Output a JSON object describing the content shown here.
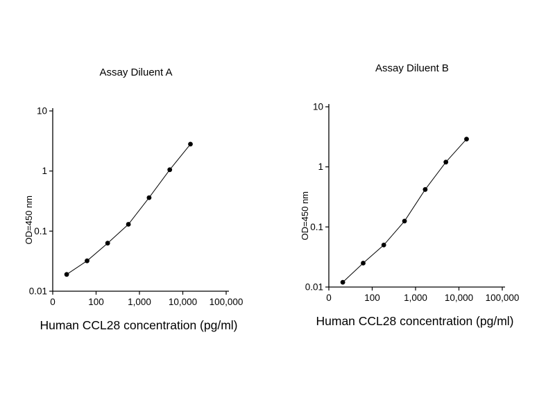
{
  "page": {
    "background": "#ffffff",
    "text_color": "#000000"
  },
  "chart_data": [
    {
      "type": "line",
      "title": "Assay Diluent A",
      "xlabel": "Human CCL28 concentration (pg/ml)",
      "ylabel": "OD=450 nm",
      "x_scale": "log",
      "y_scale": "log",
      "xlim": [
        10,
        100000
      ],
      "ylim": [
        0.01,
        10
      ],
      "grid": false,
      "legend": "none",
      "line_color": "#000000",
      "marker_color": "#000000",
      "x_ticks": [
        {
          "label": "0",
          "value": 10
        },
        {
          "label": "100",
          "value": 100
        },
        {
          "label": "1,000",
          "value": 1000
        },
        {
          "label": "10,000",
          "value": 10000
        },
        {
          "label": "100,000",
          "value": 100000
        }
      ],
      "y_ticks": [
        {
          "label": "0.01",
          "value": 0.01
        },
        {
          "label": "0.1",
          "value": 0.1
        },
        {
          "label": "1",
          "value": 1
        },
        {
          "label": "10",
          "value": 10
        }
      ],
      "points": [
        {
          "x": 21,
          "y": 0.019
        },
        {
          "x": 62,
          "y": 0.032
        },
        {
          "x": 185,
          "y": 0.063
        },
        {
          "x": 556,
          "y": 0.13
        },
        {
          "x": 1667,
          "y": 0.36
        },
        {
          "x": 5000,
          "y": 1.05
        },
        {
          "x": 15000,
          "y": 2.8
        }
      ]
    },
    {
      "type": "line",
      "title": "Assay Diluent B",
      "xlabel": "Human CCL28 concentration (pg/ml)",
      "ylabel": "OD=450 nm",
      "x_scale": "log",
      "y_scale": "log",
      "xlim": [
        10,
        100000
      ],
      "ylim": [
        0.01,
        10
      ],
      "grid": false,
      "legend": "none",
      "line_color": "#000000",
      "marker_color": "#000000",
      "x_ticks": [
        {
          "label": "0",
          "value": 10
        },
        {
          "label": "100",
          "value": 100
        },
        {
          "label": "1,000",
          "value": 1000
        },
        {
          "label": "10,000",
          "value": 10000
        },
        {
          "label": "100,000",
          "value": 100000
        }
      ],
      "y_ticks": [
        {
          "label": "0.01",
          "value": 0.01
        },
        {
          "label": "0.1",
          "value": 0.1
        },
        {
          "label": "1",
          "value": 1
        },
        {
          "label": "10",
          "value": 10
        }
      ],
      "points": [
        {
          "x": 21,
          "y": 0.012
        },
        {
          "x": 62,
          "y": 0.025
        },
        {
          "x": 185,
          "y": 0.05
        },
        {
          "x": 556,
          "y": 0.125
        },
        {
          "x": 1667,
          "y": 0.42
        },
        {
          "x": 5000,
          "y": 1.2
        },
        {
          "x": 15000,
          "y": 2.9
        }
      ]
    }
  ]
}
